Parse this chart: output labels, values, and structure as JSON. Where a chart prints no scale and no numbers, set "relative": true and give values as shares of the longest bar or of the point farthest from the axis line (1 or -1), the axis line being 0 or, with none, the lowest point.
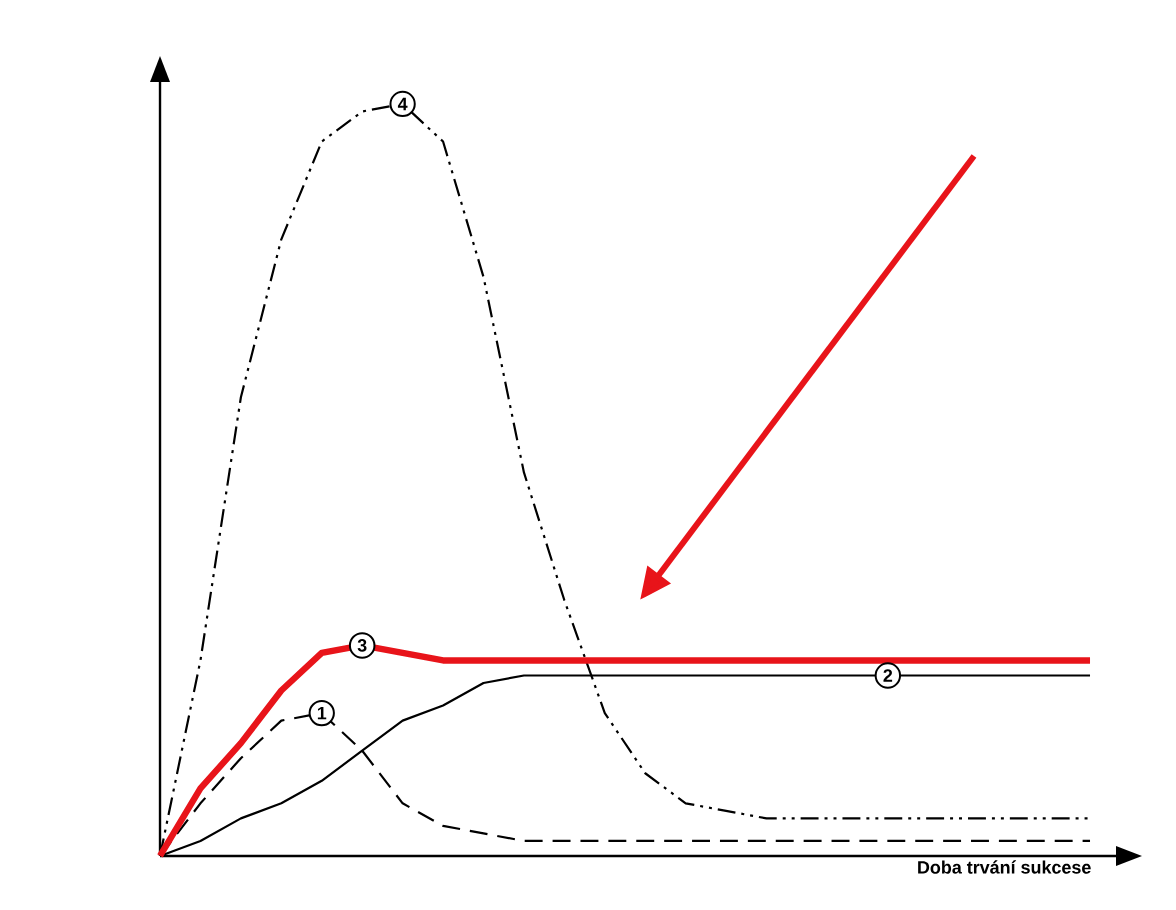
{
  "chart_data": {
    "type": "line",
    "relative": true,
    "xlabel": "Doba trvání sukcese",
    "categories": [
      null,
      null,
      null,
      null,
      null,
      null,
      null,
      null,
      null,
      null,
      null,
      null,
      null,
      null,
      null,
      null,
      null,
      null,
      null,
      null,
      null,
      null,
      null,
      null
    ],
    "series": [
      {
        "name": "4",
        "color": "#000000",
        "line_style": "dotted",
        "values": [
          0,
          0.26,
          0.61,
          0.82,
          0.95,
          0.99,
          1.0,
          0.95,
          0.77,
          0.51,
          0.34,
          0.19,
          0.11,
          0.07,
          0.06,
          0.05,
          0.05,
          0.05,
          0.05,
          0.05,
          0.05,
          0.05,
          0.05,
          0.05
        ]
      },
      {
        "name": "1",
        "color": "#000000",
        "line_style": "dashed",
        "values": [
          0,
          0.07,
          0.13,
          0.18,
          0.19,
          0.14,
          0.07,
          0.04,
          0.03,
          0.02,
          0.02,
          0.02,
          0.02,
          0.02,
          0.02,
          0.02,
          0.02,
          0.02,
          0.02,
          0.02,
          0.02,
          0.02,
          0.02,
          0.02
        ]
      },
      {
        "name": "2",
        "color": "#000000",
        "line_style": "solid",
        "values": [
          0,
          0.02,
          0.05,
          0.07,
          0.1,
          0.14,
          0.18,
          0.2,
          0.23,
          0.24,
          0.24,
          0.24,
          0.24,
          0.24,
          0.24,
          0.24,
          0.24,
          0.24,
          0.24,
          0.24,
          0.24,
          0.24,
          0.24,
          0.24
        ]
      },
      {
        "name": "3",
        "color": "#e8141a",
        "line_style": "solid",
        "values": [
          0,
          0.09,
          0.15,
          0.22,
          0.27,
          0.28,
          0.27,
          0.26,
          0.26,
          0.26,
          0.26,
          0.26,
          0.26,
          0.26,
          0.26,
          0.26,
          0.26,
          0.26,
          0.26,
          0.26,
          0.26,
          0.26,
          0.26,
          0.26
        ]
      }
    ]
  }
}
